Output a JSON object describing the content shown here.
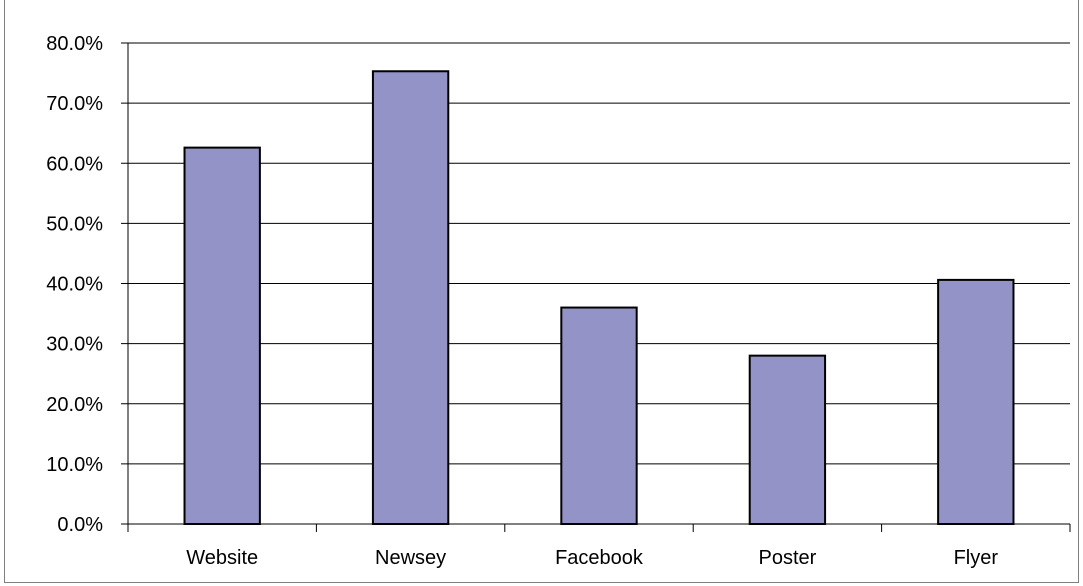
{
  "chart_data": {
    "type": "bar",
    "title": "",
    "xlabel": "",
    "ylabel": "",
    "categories": [
      "Website",
      "Newsey",
      "Facebook",
      "Poster",
      "Flyer"
    ],
    "values": [
      62.6,
      75.3,
      36.0,
      28.0,
      40.6
    ],
    "ylim": [
      0,
      80
    ],
    "yticks": [
      "0.0%",
      "10.0%",
      "20.0%",
      "30.0%",
      "40.0%",
      "50.0%",
      "60.0%",
      "70.0%",
      "80.0%"
    ],
    "grid": true,
    "legend": "none",
    "bar_color": "#9393c8"
  }
}
